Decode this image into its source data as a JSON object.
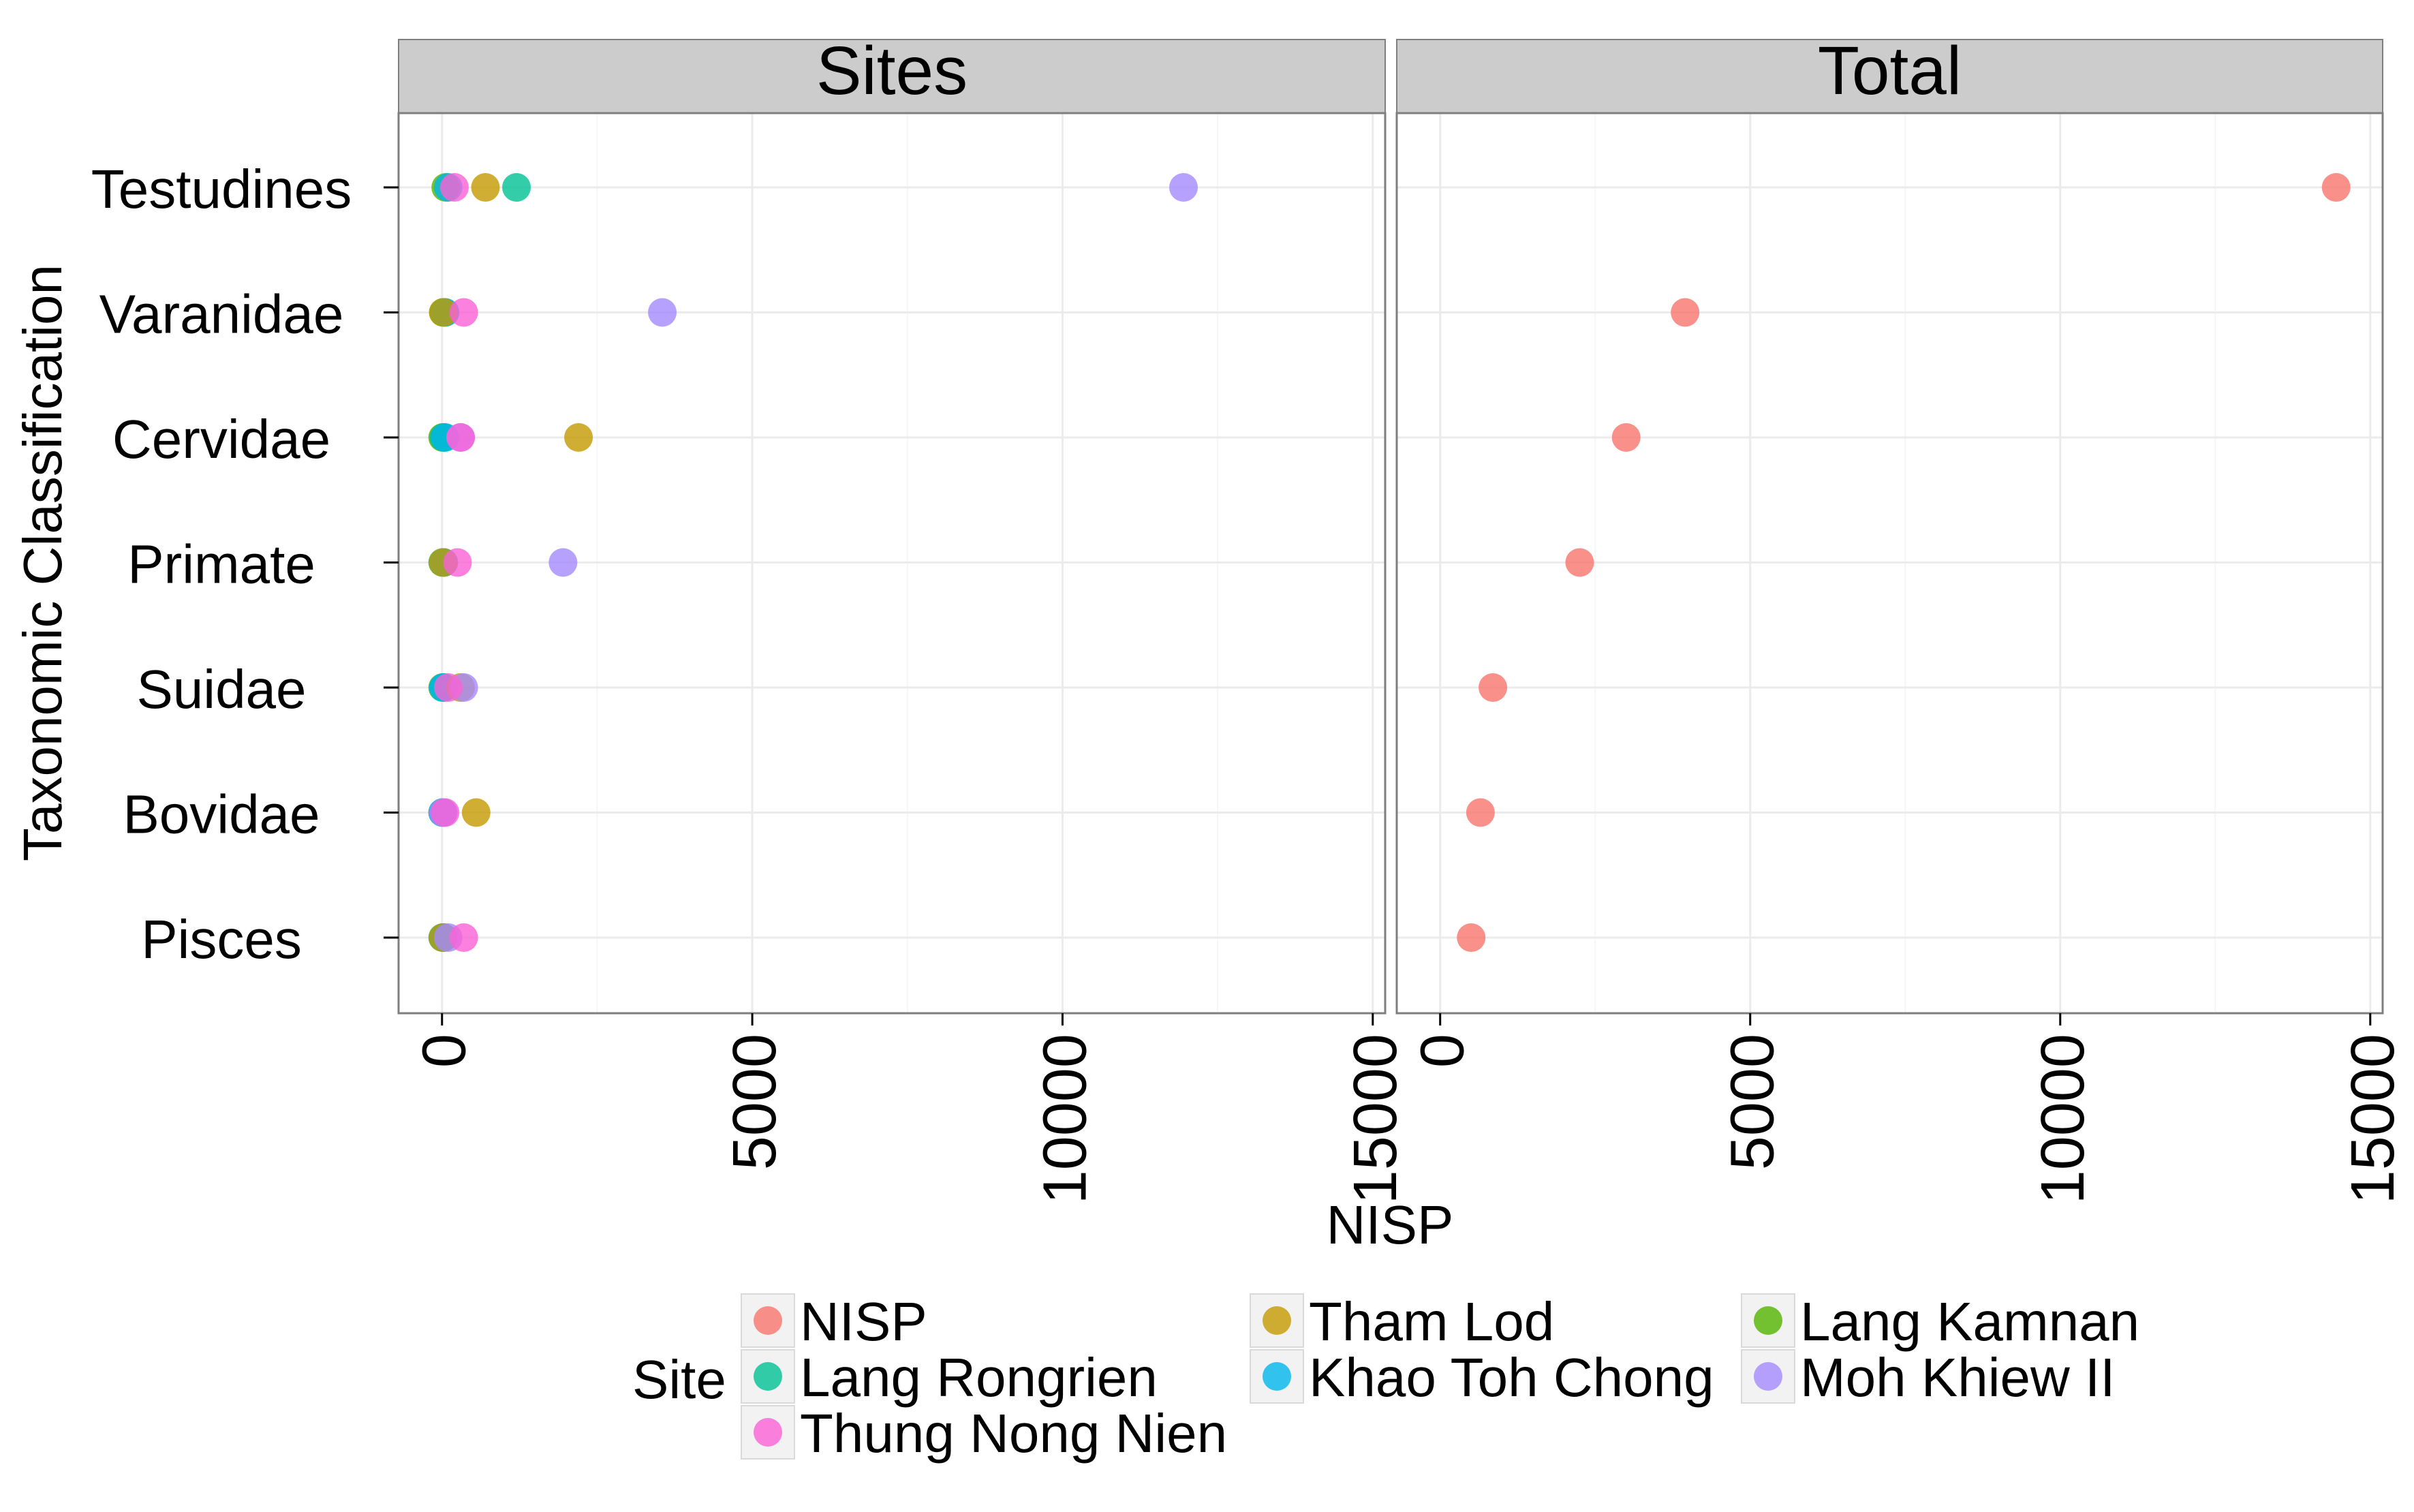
{
  "chart_data": {
    "type": "scatter",
    "facets": [
      "Sites",
      "Total"
    ],
    "categories": [
      "Testudines",
      "Varanidae",
      "Cervidae",
      "Primate",
      "Suidae",
      "Bovidae",
      "Pisces"
    ],
    "xlabel": "NISP",
    "ylabel": "Taxonomic Classification",
    "xlim": [
      -700,
      15200
    ],
    "xticks": [
      0,
      5000,
      10000,
      15000
    ],
    "grid": true,
    "legend": {
      "title": "Site",
      "position": "bottom",
      "columns": [
        [
          "NISP",
          "Lang Rongrien",
          "Thung Nong Nien"
        ],
        [
          "Tham Lod",
          "Khao Toh Chong"
        ],
        [
          "Lang Kamnan",
          "Moh Khiew II"
        ]
      ]
    },
    "colors": {
      "NISP": "#F8766D",
      "Tham Lod": "#C49A00",
      "Lang Kamnan": "#53B400",
      "Lang Rongrien": "#00C094",
      "Khao Toh Chong": "#00B6EB",
      "Moh Khiew II": "#A58AFF",
      "Thung Nong Nien": "#FB61D7"
    },
    "series": [
      {
        "name": "Lang Kamnan",
        "facet": "Sites",
        "values": [
          60,
          20,
          10,
          10,
          10,
          10,
          10
        ]
      },
      {
        "name": "Lang Rongrien",
        "facet": "Sites",
        "values": [
          1200,
          40,
          30,
          30,
          30,
          20,
          20
        ]
      },
      {
        "name": "Khao Toh Chong",
        "facet": "Sites",
        "values": [
          100,
          50,
          50,
          20,
          20,
          10,
          20
        ]
      },
      {
        "name": "Tham Lod",
        "facet": "Sites",
        "values": [
          700,
          20,
          2200,
          20,
          300,
          550,
          20
        ]
      },
      {
        "name": "Moh Khiew II",
        "facet": "Sites",
        "values": [
          11950,
          3550,
          300,
          1950,
          350,
          20,
          100
        ]
      },
      {
        "name": "Thung Nong Nien",
        "facet": "Sites",
        "values": [
          200,
          350,
          300,
          250,
          100,
          50,
          350
        ]
      },
      {
        "name": "NISP",
        "facet": "Total",
        "values": [
          14450,
          3950,
          3000,
          2250,
          850,
          650,
          500
        ]
      }
    ]
  }
}
